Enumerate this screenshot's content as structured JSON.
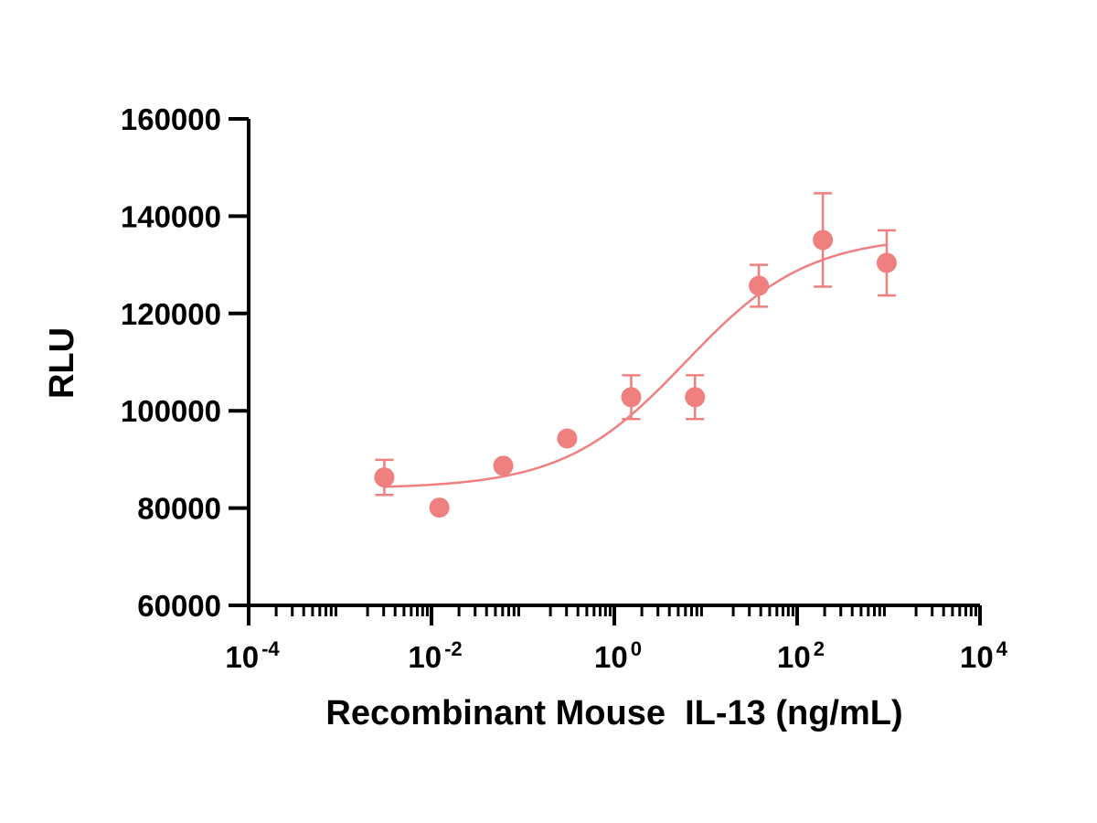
{
  "chart_data": {
    "type": "scatter",
    "title": "",
    "xlabel": "Recombinant Mouse  IL-13 (ng/mL)",
    "ylabel": "RLU",
    "x_scale": "log",
    "xlim": [
      0.0001,
      10000
    ],
    "ylim": [
      60000,
      160000
    ],
    "y_ticks": [
      60000,
      80000,
      100000,
      120000,
      140000,
      160000
    ],
    "y_tick_labels": [
      "60000",
      "80000",
      "100000",
      "120000",
      "140000",
      "160000"
    ],
    "x_ticks": [
      0.0001,
      0.01,
      1,
      100,
      10000
    ],
    "x_tick_labels": [
      {
        "base": "10",
        "exp": "-4"
      },
      {
        "base": "10",
        "exp": "-2"
      },
      {
        "base": "10",
        "exp": "0"
      },
      {
        "base": "10",
        "exp": "2"
      },
      {
        "base": "10",
        "exp": "4"
      }
    ],
    "grid": false,
    "legend": "none",
    "color": "#f07f7f",
    "series": [
      {
        "points": [
          {
            "x": 0.00305,
            "y": 86300,
            "err": 3600
          },
          {
            "x": 0.0122,
            "y": 80100,
            "err": 0
          },
          {
            "x": 0.061,
            "y": 88700,
            "err": 0
          },
          {
            "x": 0.305,
            "y": 94300,
            "err": 0
          },
          {
            "x": 1.53,
            "y": 102800,
            "err": 4500
          },
          {
            "x": 7.63,
            "y": 102800,
            "err": 4500
          },
          {
            "x": 38.1,
            "y": 125700,
            "err": 4300
          },
          {
            "x": 191,
            "y": 135100,
            "err": 9600
          },
          {
            "x": 954,
            "y": 130400,
            "err": 6700
          }
        ]
      }
    ],
    "fit_curve": {
      "model": "4PL",
      "bottom": 84000,
      "top": 136000,
      "ec50": 6.0,
      "hill": 0.65,
      "x_range": [
        0.00305,
        954
      ]
    }
  }
}
